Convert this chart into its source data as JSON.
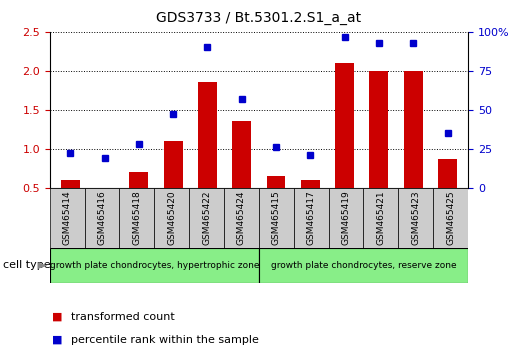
{
  "title": "GDS3733 / Bt.5301.2.S1_a_at",
  "categories": [
    "GSM465414",
    "GSM465416",
    "GSM465418",
    "GSM465420",
    "GSM465422",
    "GSM465424",
    "GSM465415",
    "GSM465417",
    "GSM465419",
    "GSM465421",
    "GSM465423",
    "GSM465425"
  ],
  "transformed_count": [
    0.6,
    0.5,
    0.7,
    1.1,
    1.85,
    1.35,
    0.65,
    0.6,
    2.1,
    2.0,
    2.0,
    0.87
  ],
  "percentile_rank": [
    22,
    19,
    28,
    47,
    90,
    57,
    26,
    21,
    97,
    93,
    93,
    35
  ],
  "bar_color": "#cc0000",
  "dot_color": "#0000cc",
  "ylim_left": [
    0.5,
    2.5
  ],
  "ylim_right": [
    0,
    100
  ],
  "yticks_left": [
    0.5,
    1.0,
    1.5,
    2.0,
    2.5
  ],
  "yticks_right": [
    0,
    25,
    50,
    75,
    100
  ],
  "ytick_labels_right": [
    "0",
    "25",
    "50",
    "75",
    "100%"
  ],
  "group1_label": "growth plate chondrocytes, hypertrophic zone",
  "group2_label": "growth plate chondrocytes, reserve zone",
  "group1_count": 6,
  "group2_count": 6,
  "cell_type_label": "cell type",
  "legend_bar_label": "transformed count",
  "legend_dot_label": "percentile rank within the sample",
  "background_color": "#ffffff",
  "group_bg_color": "#88ee88",
  "tick_label_color_left": "#cc0000",
  "tick_label_color_right": "#0000cc",
  "xlabel_tick_bg": "#cccccc",
  "bar_bottom": 0.5
}
